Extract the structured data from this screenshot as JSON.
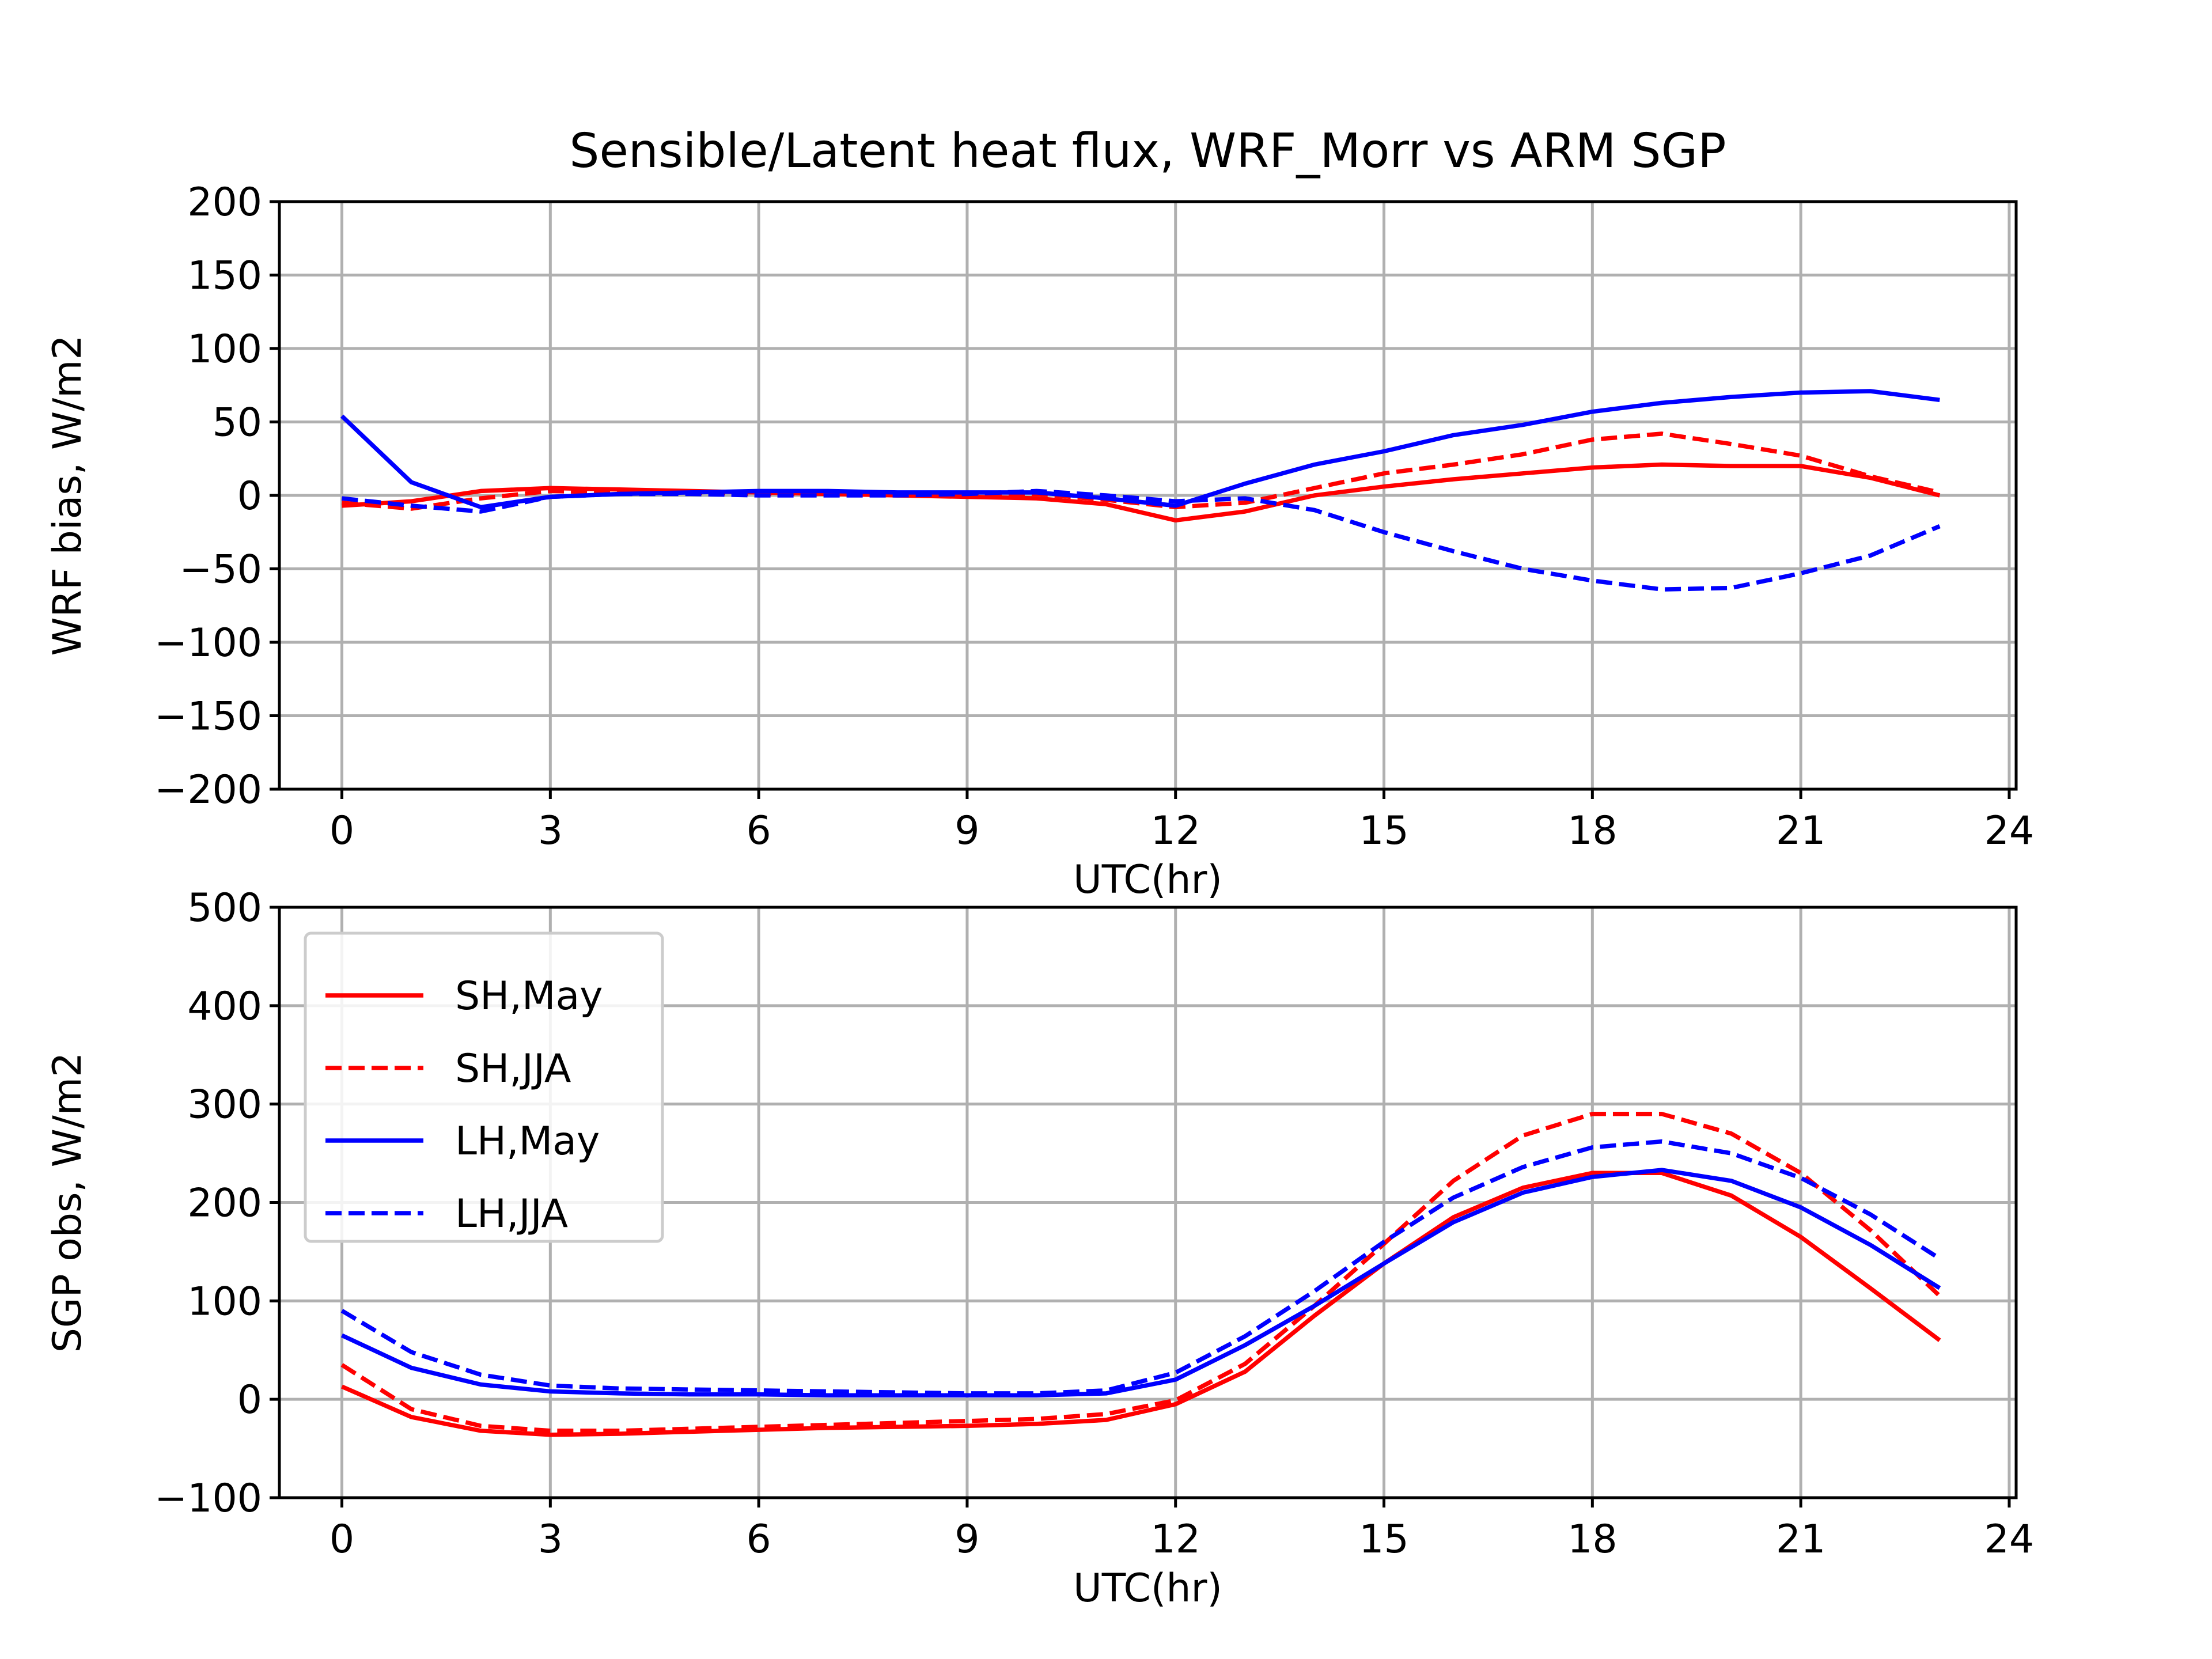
{
  "chart_data": [
    {
      "type": "line",
      "title": "Sensible/Latent heat flux, WRF_Morr vs ARM SGP",
      "xlabel": "UTC(hr)",
      "ylabel": "WRF bias, W/m2",
      "xlim": [
        -0.9,
        24.1
      ],
      "ylim": [
        -200,
        200
      ],
      "xticks": [
        0,
        3,
        6,
        9,
        12,
        15,
        18,
        21,
        24
      ],
      "xtick_labels": [
        "0",
        "3",
        "6",
        "9",
        "12",
        "15",
        "18",
        "21",
        "24"
      ],
      "yticks": [
        -200,
        -150,
        -100,
        -50,
        0,
        50,
        100,
        150,
        200
      ],
      "ytick_labels": [
        "−200",
        "−150",
        "−100",
        "−50",
        "0",
        "50",
        "100",
        "150",
        "200"
      ],
      "grid": true,
      "x": [
        0,
        1,
        2,
        3,
        4,
        5,
        6,
        7,
        8,
        9,
        10,
        11,
        12,
        13,
        14,
        15,
        16,
        17,
        18,
        19,
        20,
        21,
        22,
        23
      ],
      "series": [
        {
          "name": "SH,May",
          "color": "#ff0000",
          "dash": "solid",
          "values": [
            -7,
            -4,
            3,
            5,
            4,
            3,
            2,
            1,
            0,
            -1,
            -2,
            -6,
            -17,
            -11,
            0,
            6,
            11,
            15,
            19,
            21,
            20,
            20,
            12,
            0
          ]
        },
        {
          "name": "SH,JJA",
          "color": "#ff0000",
          "dash": "dashed",
          "values": [
            -5,
            -9,
            -2,
            3,
            2,
            2,
            1,
            1,
            0,
            0,
            1,
            -3,
            -8,
            -5,
            5,
            15,
            21,
            28,
            38,
            42,
            35,
            27,
            13,
            2
          ]
        },
        {
          "name": "LH,May",
          "color": "#0000ff",
          "dash": "solid",
          "values": [
            54,
            9,
            -8,
            -1,
            1,
            2,
            3,
            3,
            2,
            2,
            2,
            -2,
            -7,
            8,
            21,
            30,
            41,
            48,
            57,
            63,
            67,
            70,
            71,
            65
          ]
        },
        {
          "name": "LH,JJA",
          "color": "#0000ff",
          "dash": "dashed",
          "values": [
            -2,
            -7,
            -11,
            -1,
            1,
            1,
            0,
            0,
            0,
            1,
            3,
            0,
            -4,
            -2,
            -10,
            -25,
            -38,
            -50,
            -58,
            -64,
            -63,
            -53,
            -41,
            -21
          ]
        }
      ]
    },
    {
      "type": "line",
      "title": "",
      "xlabel": "UTC(hr)",
      "ylabel": "SGP obs, W/m2",
      "xlim": [
        -0.9,
        24.1
      ],
      "ylim": [
        -100,
        500
      ],
      "xticks": [
        0,
        3,
        6,
        9,
        12,
        15,
        18,
        21,
        24
      ],
      "xtick_labels": [
        "0",
        "3",
        "6",
        "9",
        "12",
        "15",
        "18",
        "21",
        "24"
      ],
      "yticks": [
        -100,
        0,
        100,
        200,
        300,
        400,
        500
      ],
      "ytick_labels": [
        "−100",
        "0",
        "100",
        "200",
        "300",
        "400",
        "500"
      ],
      "grid": true,
      "legend": "upper-left",
      "x": [
        0,
        1,
        2,
        3,
        4,
        5,
        6,
        7,
        8,
        9,
        10,
        11,
        12,
        13,
        14,
        15,
        16,
        17,
        18,
        19,
        20,
        21,
        22,
        23
      ],
      "series": [
        {
          "name": "SH,May",
          "color": "#ff0000",
          "dash": "solid",
          "values": [
            13,
            -18,
            -32,
            -36,
            -35,
            -33,
            -31,
            -29,
            -28,
            -27,
            -25,
            -21,
            -5,
            28,
            85,
            138,
            185,
            215,
            230,
            230,
            207,
            165,
            113,
            60
          ]
        },
        {
          "name": "SH,JJA",
          "color": "#ff0000",
          "dash": "dashed",
          "values": [
            35,
            -10,
            -27,
            -32,
            -32,
            -30,
            -28,
            -26,
            -24,
            -22,
            -20,
            -15,
            -1,
            36,
            95,
            158,
            222,
            268,
            290,
            290,
            270,
            230,
            172,
            105
          ]
        },
        {
          "name": "LH,May",
          "color": "#0000ff",
          "dash": "solid",
          "values": [
            65,
            32,
            15,
            8,
            6,
            5,
            5,
            4,
            4,
            4,
            4,
            6,
            20,
            55,
            95,
            138,
            180,
            210,
            226,
            233,
            222,
            195,
            157,
            113
          ]
        },
        {
          "name": "LH,JJA",
          "color": "#0000ff",
          "dash": "dashed",
          "values": [
            90,
            48,
            25,
            14,
            11,
            10,
            9,
            8,
            7,
            6,
            6,
            9,
            27,
            64,
            110,
            160,
            205,
            236,
            256,
            262,
            250,
            225,
            188,
            143
          ]
        }
      ]
    }
  ]
}
